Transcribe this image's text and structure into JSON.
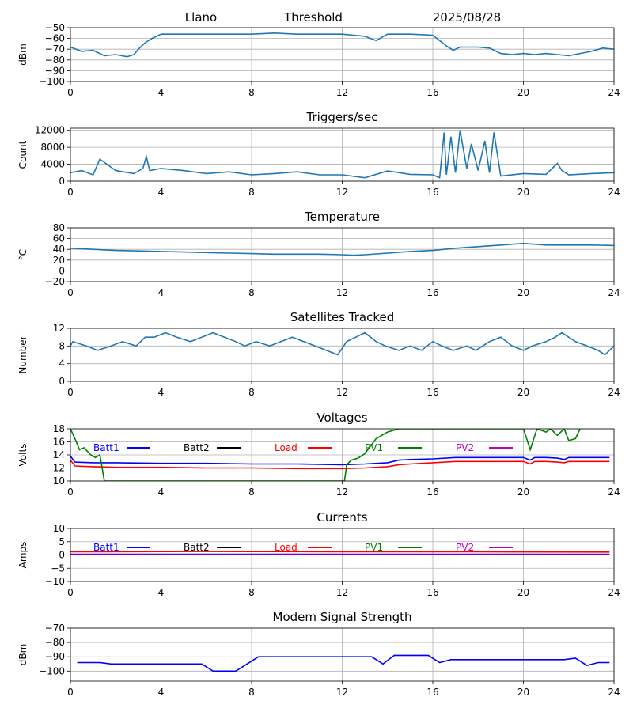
{
  "header": {
    "station": "Llano",
    "kind": "Threshold",
    "date": "2025/08/28"
  },
  "colors": {
    "primary": "#1f77b4",
    "batt1": "#0000ff",
    "batt2": "#000000",
    "load": "#ff0000",
    "pv1": "#008000",
    "pv2": "#bf00bf",
    "grid": "#b0b0b0"
  },
  "chart_data": [
    {
      "id": "threshold",
      "type": "line",
      "title": "",
      "ylabel": "dBm",
      "xlim": [
        0,
        24
      ],
      "ylim": [
        -100,
        -50
      ],
      "grid": true,
      "xticks": [
        0,
        4,
        8,
        12,
        16,
        20,
        24
      ],
      "yticks": [
        -100,
        -90,
        -80,
        -70,
        -60,
        -50
      ],
      "series": [
        {
          "color": "#1f77b4",
          "x": [
            0,
            0.5,
            1.0,
            1.5,
            2.0,
            2.5,
            2.8,
            3.0,
            3.3,
            3.6,
            4.0,
            5,
            6,
            7,
            8,
            9,
            10,
            11,
            12,
            12.5,
            13.0,
            13.5,
            14.0,
            15.0,
            16.0,
            16.3,
            16.6,
            16.9,
            17.2,
            18.0,
            18.5,
            19.0,
            19.5,
            20.0,
            20.5,
            21.0,
            21.5,
            22.0,
            22.5,
            23.0,
            23.5,
            24.0
          ],
          "y": [
            -68,
            -72,
            -71,
            -76,
            -75,
            -77,
            -75,
            -70,
            -64,
            -60,
            -56,
            -56,
            -56,
            -56,
            -56,
            -55,
            -56,
            -56,
            -56,
            -57,
            -58,
            -62,
            -56,
            -56,
            -57,
            -62,
            -67,
            -71,
            -68,
            -68,
            -69,
            -74,
            -75,
            -74,
            -75,
            -74,
            -75,
            -76,
            -74,
            -72,
            -69,
            -70
          ]
        }
      ]
    },
    {
      "id": "triggers",
      "type": "line",
      "title": "Triggers/sec",
      "ylabel": "Count",
      "xlim": [
        0,
        24
      ],
      "ylim": [
        0,
        12500
      ],
      "grid": true,
      "xticks": [
        0,
        4,
        8,
        12,
        16,
        20,
        24
      ],
      "yticks": [
        0,
        4000,
        8000,
        12000
      ],
      "series": [
        {
          "color": "#1f77b4",
          "x": [
            0,
            0.5,
            1.0,
            1.3,
            2.0,
            2.8,
            3.2,
            3.35,
            3.5,
            4.0,
            5,
            6,
            7,
            8,
            9,
            10,
            11,
            12,
            13,
            14,
            15,
            16,
            16.3,
            16.5,
            16.6,
            16.8,
            17.0,
            17.2,
            17.5,
            17.7,
            18.0,
            18.3,
            18.5,
            18.7,
            19.0,
            20,
            21,
            21.5,
            21.7,
            22,
            23,
            24
          ],
          "y": [
            2000,
            2500,
            1500,
            5200,
            2500,
            1800,
            3000,
            5800,
            2500,
            3000,
            2500,
            1800,
            2200,
            1500,
            1800,
            2200,
            1500,
            1500,
            800,
            2400,
            1600,
            1500,
            800,
            11500,
            1500,
            10500,
            2000,
            12000,
            3000,
            8800,
            2500,
            9500,
            2000,
            11500,
            1200,
            1800,
            1600,
            4200,
            2500,
            1500,
            1800,
            2000
          ]
        }
      ]
    },
    {
      "id": "temperature",
      "type": "line",
      "title": "Temperature",
      "ylabel": "°C",
      "xlim": [
        0,
        24
      ],
      "ylim": [
        -20,
        80
      ],
      "grid": true,
      "xticks": [
        0,
        4,
        8,
        12,
        16,
        20,
        24
      ],
      "yticks": [
        -20,
        0,
        20,
        40,
        60,
        80
      ],
      "series": [
        {
          "color": "#1f77b4",
          "x": [
            0,
            1,
            2,
            3,
            4,
            5,
            6,
            7,
            8,
            9,
            10,
            11,
            12,
            12.5,
            13,
            14,
            15,
            16,
            17,
            18,
            19,
            20,
            21,
            22,
            23,
            24
          ],
          "y": [
            42,
            40,
            38,
            37,
            36,
            35,
            34,
            33,
            32,
            31,
            31,
            31,
            30,
            29,
            30,
            33,
            36,
            38,
            42,
            45,
            48,
            51,
            48,
            48,
            48,
            47
          ]
        }
      ]
    },
    {
      "id": "satellites",
      "type": "line",
      "title": "Satellites Tracked",
      "ylabel": "Number",
      "xlim": [
        0,
        24
      ],
      "ylim": [
        0,
        12
      ],
      "grid": true,
      "xticks": [
        0,
        4,
        8,
        12,
        16,
        20,
        24
      ],
      "yticks": [
        0,
        4,
        8,
        12
      ],
      "series": [
        {
          "color": "#1f77b4",
          "x": [
            0,
            0.1,
            0.7,
            1.2,
            1.8,
            2.3,
            2.9,
            3.3,
            3.7,
            4.2,
            4.7,
            5.3,
            5.8,
            6.3,
            6.8,
            7.3,
            7.7,
            8.2,
            8.8,
            9.3,
            9.8,
            10.3,
            10.8,
            11.3,
            11.8,
            12.2,
            12.6,
            13.0,
            13.5,
            13.9,
            14.5,
            15.0,
            15.5,
            16.0,
            16.4,
            16.9,
            17.5,
            17.9,
            18.5,
            19.0,
            19.5,
            20.0,
            20.4,
            21.0,
            21.4,
            21.7,
            22.3,
            22.8,
            23.3,
            23.6,
            24.0
          ],
          "y": [
            8,
            9,
            8,
            7,
            8,
            9,
            8,
            10,
            10,
            11,
            10,
            9,
            10,
            11,
            10,
            9,
            8,
            9,
            8,
            9,
            10,
            9,
            8,
            7,
            6,
            9,
            10,
            11,
            9,
            8,
            7,
            8,
            7,
            9,
            8,
            7,
            8,
            7,
            9,
            10,
            8,
            7,
            8,
            9,
            10,
            11,
            9,
            8,
            7,
            6,
            8
          ]
        }
      ]
    },
    {
      "id": "voltages",
      "type": "line",
      "title": "Voltages",
      "ylabel": "Volts",
      "xlim": [
        0,
        24
      ],
      "ylim": [
        10,
        18
      ],
      "grid": true,
      "xticks": [
        0,
        4,
        8,
        12,
        16,
        20,
        24
      ],
      "yticks": [
        10,
        12,
        14,
        16,
        18
      ],
      "series": [
        {
          "name": "Batt1",
          "color": "#0000ff",
          "x": [
            0,
            0.2,
            1,
            2,
            4,
            6,
            8,
            10,
            12,
            13,
            14,
            14.5,
            15,
            16,
            17,
            18,
            19,
            20,
            20.3,
            20.5,
            21,
            21.5,
            21.8,
            22,
            23,
            23.8
          ],
          "y": [
            13.8,
            12.9,
            12.8,
            12.8,
            12.7,
            12.7,
            12.6,
            12.6,
            12.5,
            12.6,
            12.8,
            13.2,
            13.3,
            13.4,
            13.6,
            13.6,
            13.6,
            13.6,
            13.2,
            13.6,
            13.6,
            13.5,
            13.3,
            13.6,
            13.6,
            13.6
          ]
        },
        {
          "name": "Batt2",
          "color": "#000000",
          "x": [],
          "y": []
        },
        {
          "name": "Load",
          "color": "#ff0000",
          "x": [
            0,
            0.2,
            1,
            2,
            4,
            6,
            8,
            10,
            12,
            13,
            14,
            14.5,
            15,
            16,
            17,
            18,
            19,
            20,
            20.3,
            20.5,
            21,
            21.5,
            21.8,
            22,
            23,
            23.8
          ],
          "y": [
            13.2,
            12.3,
            12.2,
            12.1,
            12.1,
            12.0,
            12.0,
            11.9,
            11.9,
            12.0,
            12.2,
            12.5,
            12.6,
            12.8,
            13.0,
            13.0,
            13.0,
            13.0,
            12.6,
            13.0,
            13.0,
            12.9,
            12.8,
            13.0,
            13.0,
            13.0
          ]
        },
        {
          "name": "PV1",
          "color": "#008000",
          "x": [
            0,
            0.2,
            0.4,
            0.6,
            0.9,
            1.1,
            1.3,
            1.4,
            1.5,
            12.1,
            12.2,
            12.4,
            12.7,
            13.0,
            13.5,
            14.0,
            14.5,
            20.0,
            20.3,
            20.6,
            21.0,
            21.2,
            21.5,
            21.8,
            22.0,
            22.3,
            22.5
          ],
          "y": [
            18,
            16.5,
            14.8,
            15.1,
            14.0,
            13.6,
            14.0,
            12,
            10,
            10,
            12.5,
            13.2,
            13.5,
            14.2,
            16.5,
            17.5,
            18,
            18,
            14.8,
            18,
            17.5,
            18,
            17.0,
            18,
            16.2,
            16.5,
            18
          ]
        },
        {
          "name": "PV2",
          "color": "#bf00bf",
          "x": [],
          "y": []
        }
      ]
    },
    {
      "id": "currents",
      "type": "line",
      "title": "Currents",
      "ylabel": "Amps",
      "xlim": [
        0,
        24
      ],
      "ylim": [
        -10,
        10
      ],
      "grid": true,
      "xticks": [
        0,
        4,
        8,
        12,
        16,
        20,
        24
      ],
      "yticks": [
        -10,
        -5,
        0,
        5,
        10
      ],
      "series": [
        {
          "name": "Batt1",
          "color": "#0000ff",
          "x": [
            0,
            23.8
          ],
          "y": [
            0.3,
            0.3
          ]
        },
        {
          "name": "Batt2",
          "color": "#000000",
          "x": [],
          "y": []
        },
        {
          "name": "Load",
          "color": "#ff0000",
          "x": [
            0,
            6,
            12,
            18,
            23.8
          ],
          "y": [
            1.2,
            1.3,
            1.2,
            1.2,
            1.1
          ]
        },
        {
          "name": "PV1",
          "color": "#008000",
          "x": [],
          "y": []
        },
        {
          "name": "PV2",
          "color": "#bf00bf",
          "x": [
            0,
            23.8
          ],
          "y": [
            0.1,
            0.1
          ]
        }
      ]
    },
    {
      "id": "modem",
      "type": "line",
      "title": "Modem Signal Strength",
      "ylabel": "dBm",
      "xlim": [
        0,
        24
      ],
      "ylim": [
        -107,
        -70
      ],
      "grid": true,
      "xticks": [
        0,
        4,
        8,
        12,
        16,
        20,
        24
      ],
      "yticks": [
        -100,
        -90,
        -80,
        -70
      ],
      "series": [
        {
          "color": "#0000ff",
          "x": [
            0.3,
            1.3,
            1.8,
            2.8,
            5.8,
            6.3,
            7.3,
            8.3,
            12.3,
            13.3,
            13.8,
            14.3,
            15.8,
            16.3,
            16.8,
            21.8,
            22.3,
            22.8,
            23.3,
            23.8
          ],
          "y": [
            -94,
            -94,
            -95,
            -95,
            -95,
            -100,
            -100,
            -90,
            -90,
            -90,
            -95,
            -89,
            -89,
            -94,
            -92,
            -92,
            -91,
            -96,
            -94,
            -94
          ]
        }
      ]
    }
  ]
}
